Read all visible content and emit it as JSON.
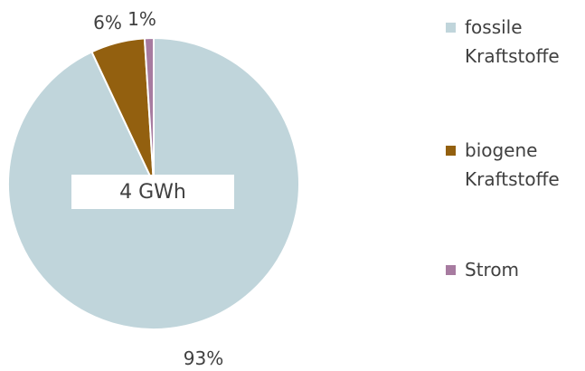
{
  "chart_data": {
    "type": "pie",
    "title": "",
    "center_label": "4 GWh",
    "slices": [
      {
        "name": "fossile Kraftstoffe",
        "label": "93%",
        "value": 93,
        "color": "#c0d5db"
      },
      {
        "name": "biogene Kraftstoffe",
        "label": "6%",
        "value": 6,
        "color": "#93600f"
      },
      {
        "name": "Strom",
        "label": "1%",
        "value": 1,
        "color": "#a77ba0"
      }
    ],
    "legend_placement": "right"
  },
  "legend": {
    "items": [
      {
        "label": "fossile Kraftstoffe",
        "color": "#c0d5db"
      },
      {
        "label": "biogene Kraftstoffe",
        "color": "#93600f"
      },
      {
        "label": "Strom",
        "color": "#a77ba0"
      }
    ]
  }
}
